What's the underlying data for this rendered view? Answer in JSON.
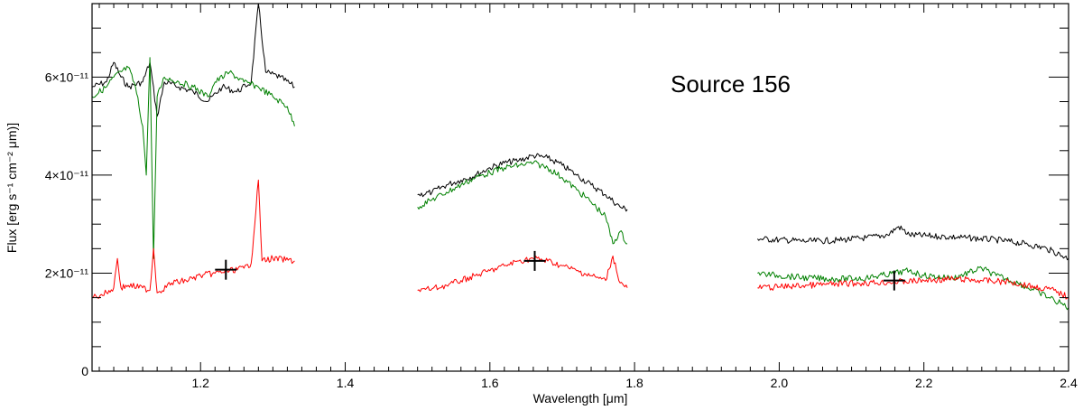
{
  "chart_data": {
    "type": "line",
    "title": "",
    "annotation": "Source 156",
    "xlabel": "Wavelength [μm]",
    "ylabel": "Flux [erg s⁻¹ cm⁻² μm)]",
    "xlim": [
      1.05,
      2.4
    ],
    "ylim": [
      0,
      7.5e-11
    ],
    "x_ticks": [
      1.2,
      1.4,
      1.6,
      1.8,
      2.0,
      2.2,
      2.4
    ],
    "x_tick_labels": [
      "1.2",
      "1.4",
      "1.6",
      "1.8",
      "2.0",
      "2.2",
      "2.4"
    ],
    "y_ticks": [
      0,
      2e-11,
      4e-11,
      6e-11
    ],
    "y_tick_labels": [
      "0",
      "2×10⁻¹¹",
      "4×10⁻¹¹",
      "6×10⁻¹¹"
    ],
    "grid": false,
    "series": [
      {
        "color": "#000000",
        "segments": [
          [
            [
              1.05,
              5.8e-11
            ],
            [
              1.07,
              5.9e-11
            ],
            [
              1.08,
              6.3e-11
            ],
            [
              1.09,
              6e-11
            ],
            [
              1.1,
              5.8e-11
            ],
            [
              1.12,
              5.9e-11
            ],
            [
              1.13,
              6.3e-11
            ],
            [
              1.14,
              5.2e-11
            ],
            [
              1.15,
              5.9e-11
            ],
            [
              1.17,
              5.8e-11
            ],
            [
              1.19,
              5.7e-11
            ],
            [
              1.21,
              5.5e-11
            ],
            [
              1.23,
              5.8e-11
            ],
            [
              1.25,
              5.7e-11
            ],
            [
              1.27,
              5.9e-11
            ],
            [
              1.28,
              7.5e-11
            ],
            [
              1.29,
              6.1e-11
            ],
            [
              1.31,
              6e-11
            ],
            [
              1.33,
              5.8e-11
            ]
          ],
          [
            [
              1.5,
              3.6e-11
            ],
            [
              1.52,
              3.65e-11
            ],
            [
              1.54,
              3.8e-11
            ],
            [
              1.56,
              3.9e-11
            ],
            [
              1.58,
              4e-11
            ],
            [
              1.6,
              4.15e-11
            ],
            [
              1.62,
              4.25e-11
            ],
            [
              1.64,
              4.3e-11
            ],
            [
              1.66,
              4.4e-11
            ],
            [
              1.68,
              4.35e-11
            ],
            [
              1.7,
              4.2e-11
            ],
            [
              1.72,
              4e-11
            ],
            [
              1.74,
              3.8e-11
            ],
            [
              1.76,
              3.6e-11
            ],
            [
              1.78,
              3.35e-11
            ],
            [
              1.79,
              3.3e-11
            ]
          ],
          [
            [
              1.97,
              2.7e-11
            ],
            [
              2.0,
              2.68e-11
            ],
            [
              2.04,
              2.65e-11
            ],
            [
              2.08,
              2.67e-11
            ],
            [
              2.12,
              2.72e-11
            ],
            [
              2.15,
              2.78e-11
            ],
            [
              2.165,
              2.95e-11
            ],
            [
              2.18,
              2.78e-11
            ],
            [
              2.22,
              2.75e-11
            ],
            [
              2.26,
              2.72e-11
            ],
            [
              2.3,
              2.68e-11
            ],
            [
              2.34,
              2.6e-11
            ],
            [
              2.37,
              2.5e-11
            ],
            [
              2.4,
              2.3e-11
            ]
          ]
        ]
      },
      {
        "color": "#008000",
        "segments": [
          [
            [
              1.05,
              5.6e-11
            ],
            [
              1.07,
              5.8e-11
            ],
            [
              1.08,
              6e-11
            ],
            [
              1.1,
              6.2e-11
            ],
            [
              1.11,
              5.8e-11
            ],
            [
              1.12,
              5e-11
            ],
            [
              1.125,
              4e-11
            ],
            [
              1.13,
              6.4e-11
            ],
            [
              1.135,
              2.3e-11
            ],
            [
              1.14,
              5.6e-11
            ],
            [
              1.15,
              6e-11
            ],
            [
              1.17,
              5.9e-11
            ],
            [
              1.19,
              5.8e-11
            ],
            [
              1.21,
              5.6e-11
            ],
            [
              1.22,
              5.9e-11
            ],
            [
              1.24,
              6.1e-11
            ],
            [
              1.26,
              5.9e-11
            ],
            [
              1.28,
              5.8e-11
            ],
            [
              1.3,
              5.6e-11
            ],
            [
              1.32,
              5.4e-11
            ],
            [
              1.33,
              5e-11
            ]
          ],
          [
            [
              1.5,
              3.35e-11
            ],
            [
              1.52,
              3.5e-11
            ],
            [
              1.54,
              3.65e-11
            ],
            [
              1.56,
              3.8e-11
            ],
            [
              1.58,
              3.95e-11
            ],
            [
              1.6,
              4.05e-11
            ],
            [
              1.62,
              4.15e-11
            ],
            [
              1.64,
              4.2e-11
            ],
            [
              1.66,
              4.25e-11
            ],
            [
              1.68,
              4.15e-11
            ],
            [
              1.7,
              3.95e-11
            ],
            [
              1.72,
              3.7e-11
            ],
            [
              1.74,
              3.45e-11
            ],
            [
              1.76,
              3.15e-11
            ],
            [
              1.77,
              2.6e-11
            ],
            [
              1.78,
              2.85e-11
            ],
            [
              1.79,
              2.6e-11
            ]
          ],
          [
            [
              1.97,
              2e-11
            ],
            [
              2.0,
              1.95e-11
            ],
            [
              2.04,
              1.9e-11
            ],
            [
              2.08,
              1.88e-11
            ],
            [
              2.12,
              1.9e-11
            ],
            [
              2.16,
              2e-11
            ],
            [
              2.18,
              2.05e-11
            ],
            [
              2.2,
              1.95e-11
            ],
            [
              2.24,
              1.9e-11
            ],
            [
              2.28,
              2.1e-11
            ],
            [
              2.3,
              1.95e-11
            ],
            [
              2.33,
              1.8e-11
            ],
            [
              2.36,
              1.6e-11
            ],
            [
              2.38,
              1.45e-11
            ],
            [
              2.4,
              1.3e-11
            ]
          ]
        ]
      },
      {
        "color": "#ff0000",
        "segments": [
          [
            [
              1.05,
              1.5e-11
            ],
            [
              1.07,
              1.6e-11
            ],
            [
              1.08,
              1.7e-11
            ],
            [
              1.085,
              2.3e-11
            ],
            [
              1.09,
              1.7e-11
            ],
            [
              1.1,
              1.75e-11
            ],
            [
              1.12,
              1.7e-11
            ],
            [
              1.13,
              1.65e-11
            ],
            [
              1.135,
              2.5e-11
            ],
            [
              1.14,
              1.6e-11
            ],
            [
              1.16,
              1.8e-11
            ],
            [
              1.18,
              1.85e-11
            ],
            [
              1.2,
              1.95e-11
            ],
            [
              1.22,
              2e-11
            ],
            [
              1.24,
              2.05e-11
            ],
            [
              1.26,
              2.1e-11
            ],
            [
              1.27,
              2.2e-11
            ],
            [
              1.28,
              3.9e-11
            ],
            [
              1.285,
              2.25e-11
            ],
            [
              1.3,
              2.3e-11
            ],
            [
              1.33,
              2.25e-11
            ]
          ],
          [
            [
              1.5,
              1.65e-11
            ],
            [
              1.52,
              1.68e-11
            ],
            [
              1.54,
              1.75e-11
            ],
            [
              1.56,
              1.85e-11
            ],
            [
              1.58,
              1.95e-11
            ],
            [
              1.6,
              2.05e-11
            ],
            [
              1.62,
              2.15e-11
            ],
            [
              1.64,
              2.25e-11
            ],
            [
              1.66,
              2.3e-11
            ],
            [
              1.68,
              2.25e-11
            ],
            [
              1.7,
              2.15e-11
            ],
            [
              1.72,
              2.05e-11
            ],
            [
              1.74,
              1.95e-11
            ],
            [
              1.76,
              1.85e-11
            ],
            [
              1.77,
              2.35e-11
            ],
            [
              1.78,
              1.8e-11
            ],
            [
              1.79,
              1.7e-11
            ]
          ],
          [
            [
              1.97,
              1.7e-11
            ],
            [
              2.0,
              1.72e-11
            ],
            [
              2.04,
              1.75e-11
            ],
            [
              2.08,
              1.78e-11
            ],
            [
              2.12,
              1.8e-11
            ],
            [
              2.16,
              1.82e-11
            ],
            [
              2.2,
              1.85e-11
            ],
            [
              2.24,
              1.88e-11
            ],
            [
              2.28,
              1.85e-11
            ],
            [
              2.32,
              1.82e-11
            ],
            [
              2.36,
              1.7e-11
            ],
            [
              2.38,
              1.65e-11
            ],
            [
              2.4,
              1.5e-11
            ]
          ]
        ]
      }
    ],
    "markers": [
      {
        "x": 1.235,
        "y": 2.07e-11,
        "symbol": "plus",
        "color": "#000000"
      },
      {
        "x": 1.662,
        "y": 2.25e-11,
        "symbol": "plus",
        "color": "#000000"
      },
      {
        "x": 2.159,
        "y": 1.85e-11,
        "symbol": "plus",
        "color": "#000000"
      }
    ]
  }
}
